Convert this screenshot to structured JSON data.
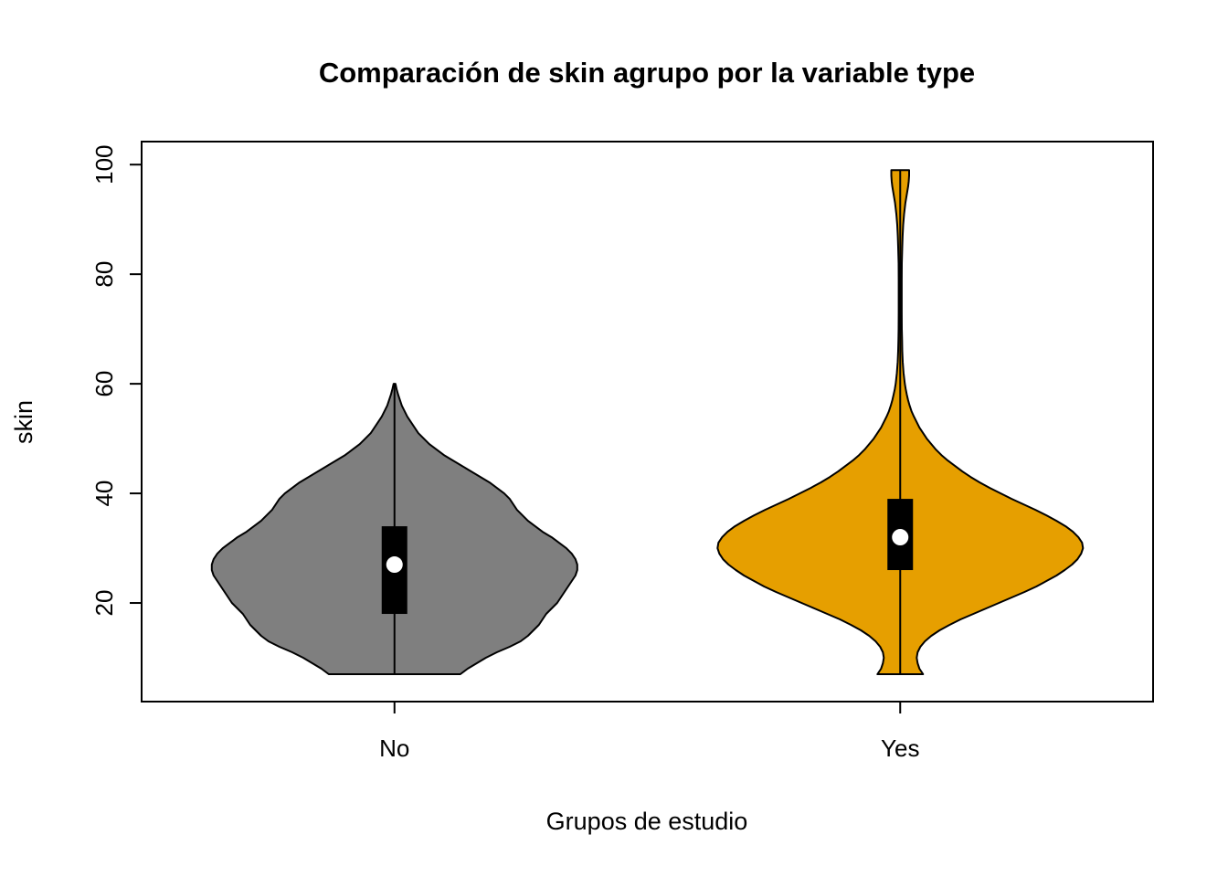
{
  "chart_data": {
    "type": "violin",
    "title": "Comparación de skin agrupo por la variable type",
    "xlabel": "Grupos de estudio",
    "ylabel": "skin",
    "categories": [
      "No",
      "Yes"
    ],
    "y_ticks": [
      20,
      40,
      60,
      80,
      100
    ],
    "ylim": [
      2,
      104.2
    ],
    "grid": false,
    "background_color": "#FFFFFF",
    "box_color": "#000000",
    "median_dot_color": "#FFFFFF",
    "series": [
      {
        "name": "No",
        "fill": "#7F7F7F",
        "stroke": "#000000",
        "min": 7,
        "max": 60,
        "q1": 18,
        "q3": 34,
        "median": 27,
        "density": [
          [
            7,
            0.36
          ],
          [
            8,
            0.4
          ],
          [
            9,
            0.45
          ],
          [
            10,
            0.5
          ],
          [
            11,
            0.56
          ],
          [
            12,
            0.63
          ],
          [
            13,
            0.69
          ],
          [
            14,
            0.73
          ],
          [
            15,
            0.76
          ],
          [
            16,
            0.79
          ],
          [
            17,
            0.81
          ],
          [
            18,
            0.83
          ],
          [
            19,
            0.86
          ],
          [
            20,
            0.89
          ],
          [
            21,
            0.91
          ],
          [
            22,
            0.93
          ],
          [
            23,
            0.95
          ],
          [
            24,
            0.97
          ],
          [
            25,
            0.99
          ],
          [
            26,
            1.0
          ],
          [
            27,
            1.0
          ],
          [
            28,
            0.99
          ],
          [
            29,
            0.97
          ],
          [
            30,
            0.94
          ],
          [
            31,
            0.9
          ],
          [
            32,
            0.86
          ],
          [
            33,
            0.81
          ],
          [
            34,
            0.77
          ],
          [
            35,
            0.73
          ],
          [
            36,
            0.7
          ],
          [
            37,
            0.67
          ],
          [
            38,
            0.65
          ],
          [
            39,
            0.63
          ],
          [
            40,
            0.6
          ],
          [
            41,
            0.56
          ],
          [
            42,
            0.52
          ],
          [
            43,
            0.47
          ],
          [
            44,
            0.42
          ],
          [
            45,
            0.37
          ],
          [
            46,
            0.32
          ],
          [
            47,
            0.27
          ],
          [
            48,
            0.23
          ],
          [
            49,
            0.19
          ],
          [
            50,
            0.16
          ],
          [
            51,
            0.13
          ],
          [
            52,
            0.11
          ],
          [
            53,
            0.09
          ],
          [
            54,
            0.07
          ],
          [
            55,
            0.055
          ],
          [
            56,
            0.04
          ],
          [
            57,
            0.03
          ],
          [
            58,
            0.02
          ],
          [
            59,
            0.012
          ],
          [
            60,
            0.005
          ]
        ]
      },
      {
        "name": "Yes",
        "fill": "#E69F00",
        "stroke": "#000000",
        "min": 7,
        "max": 99,
        "q1": 26,
        "q3": 39,
        "median": 32,
        "density": [
          [
            7,
            0.125
          ],
          [
            8,
            0.105
          ],
          [
            9,
            0.095
          ],
          [
            10,
            0.09
          ],
          [
            11,
            0.095
          ],
          [
            12,
            0.11
          ],
          [
            13,
            0.135
          ],
          [
            14,
            0.17
          ],
          [
            15,
            0.215
          ],
          [
            16,
            0.27
          ],
          [
            17,
            0.33
          ],
          [
            18,
            0.4
          ],
          [
            19,
            0.47
          ],
          [
            20,
            0.54
          ],
          [
            21,
            0.61
          ],
          [
            22,
            0.68
          ],
          [
            23,
            0.745
          ],
          [
            24,
            0.8
          ],
          [
            25,
            0.855
          ],
          [
            26,
            0.9
          ],
          [
            27,
            0.94
          ],
          [
            28,
            0.97
          ],
          [
            29,
            0.99
          ],
          [
            30,
            1.0
          ],
          [
            31,
            0.995
          ],
          [
            32,
            0.975
          ],
          [
            33,
            0.945
          ],
          [
            34,
            0.905
          ],
          [
            35,
            0.855
          ],
          [
            36,
            0.8
          ],
          [
            37,
            0.74
          ],
          [
            38,
            0.675
          ],
          [
            39,
            0.61
          ],
          [
            40,
            0.55
          ],
          [
            41,
            0.49
          ],
          [
            42,
            0.435
          ],
          [
            43,
            0.385
          ],
          [
            44,
            0.34
          ],
          [
            45,
            0.3
          ],
          [
            46,
            0.26
          ],
          [
            47,
            0.225
          ],
          [
            48,
            0.195
          ],
          [
            49,
            0.17
          ],
          [
            50,
            0.145
          ],
          [
            51,
            0.125
          ],
          [
            52,
            0.105
          ],
          [
            53,
            0.09
          ],
          [
            54,
            0.075
          ],
          [
            55,
            0.062
          ],
          [
            56,
            0.052
          ],
          [
            57,
            0.043
          ],
          [
            58,
            0.036
          ],
          [
            59,
            0.03
          ],
          [
            60,
            0.025
          ],
          [
            62,
            0.018
          ],
          [
            64,
            0.014
          ],
          [
            66,
            0.011
          ],
          [
            68,
            0.01
          ],
          [
            70,
            0.009
          ],
          [
            73,
            0.008
          ],
          [
            76,
            0.008
          ],
          [
            79,
            0.008
          ],
          [
            82,
            0.009
          ],
          [
            85,
            0.011
          ],
          [
            87,
            0.013
          ],
          [
            89,
            0.016
          ],
          [
            91,
            0.021
          ],
          [
            93,
            0.028
          ],
          [
            94,
            0.033
          ],
          [
            95,
            0.038
          ],
          [
            96,
            0.043
          ],
          [
            97,
            0.047
          ],
          [
            98,
            0.049
          ],
          [
            99,
            0.049
          ]
        ]
      }
    ]
  }
}
